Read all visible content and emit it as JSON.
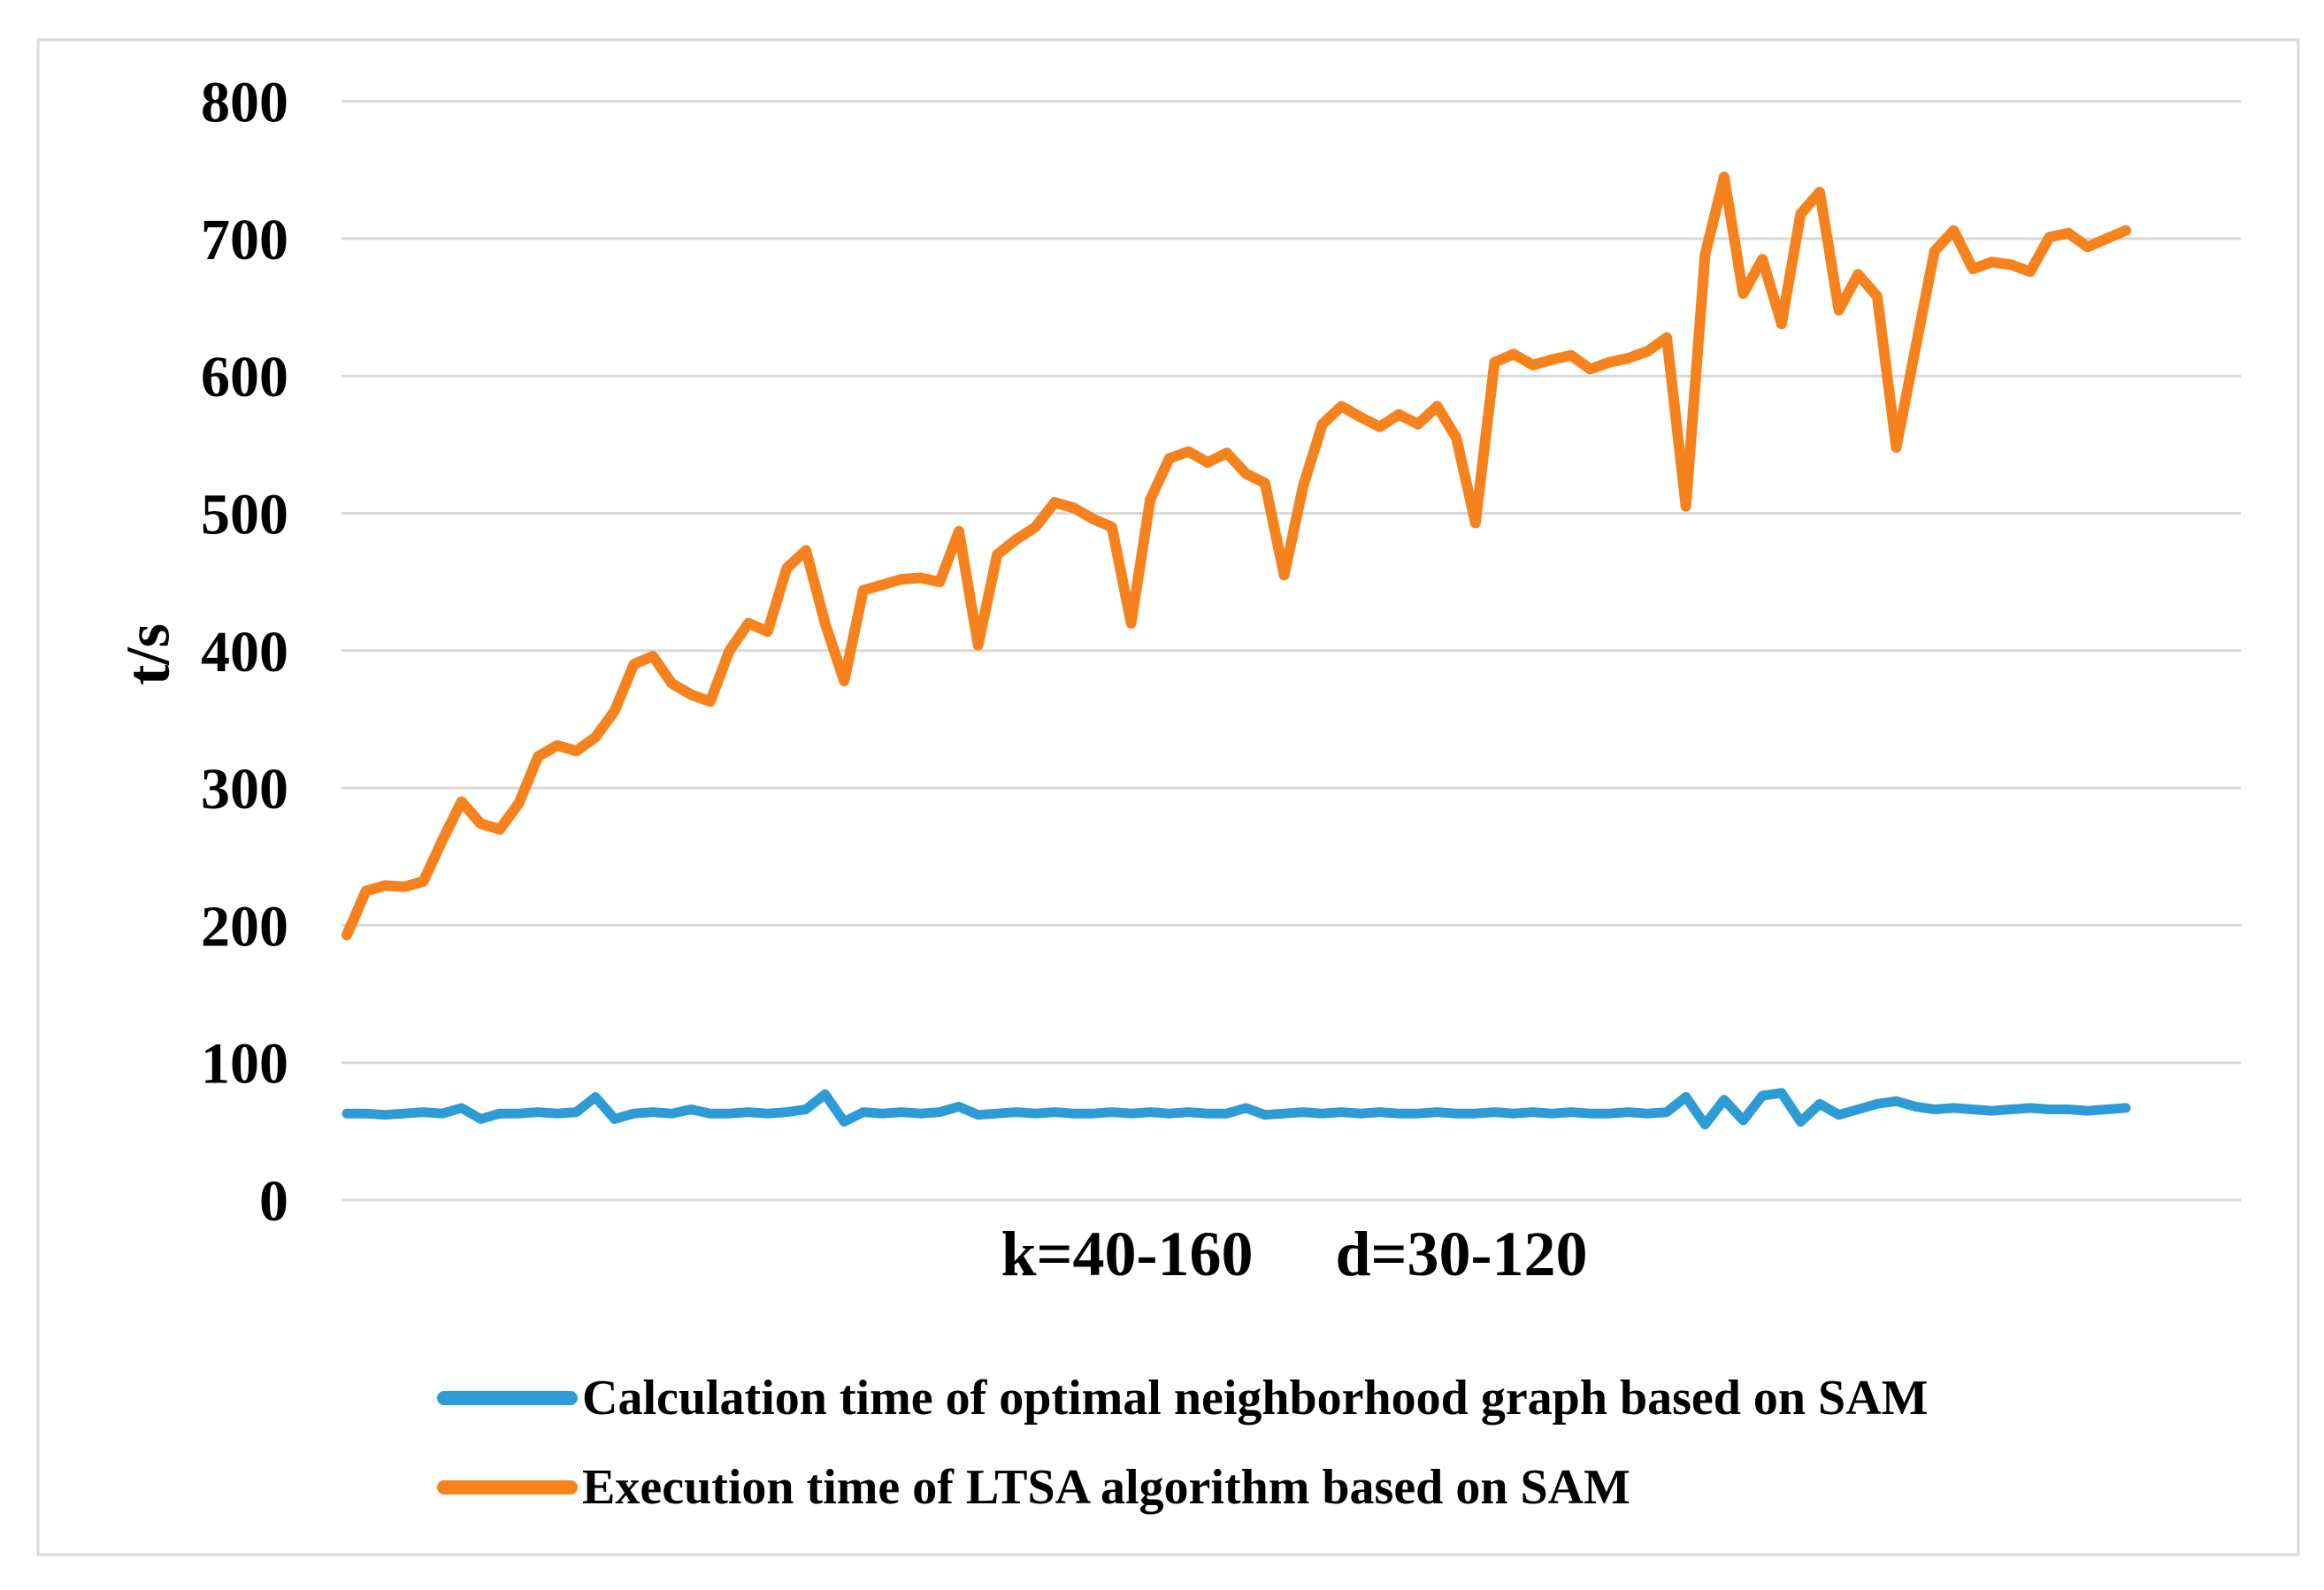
{
  "figure": {
    "background": "#FFFFFF",
    "border_color": "#D9D9D9"
  },
  "chart_data": {
    "type": "line",
    "title": "",
    "ylabel": "t/s",
    "xlabel": "k=40-160    d=30-120",
    "xlabel_parts": [
      "k=40-160",
      "d=30-120"
    ],
    "ylim": [
      0,
      800
    ],
    "ytick_labels": [
      "0",
      "100",
      "200",
      "300",
      "400",
      "500",
      "600",
      "700",
      "800"
    ],
    "grid": "horizontal",
    "legend_position": "bottom-left",
    "colors": {
      "gridline": "#D9D9D9",
      "text": "#000000",
      "blue_series": "#2D9BD5",
      "orange_series": "#F6821E"
    },
    "series": [
      {
        "name": "Calculation time of optimal neighborhood graph based on SAM",
        "color": "#2D9BD5",
        "stroke_width": 11,
        "values": [
          63,
          63,
          62,
          63,
          64,
          63,
          67,
          59,
          63,
          63,
          64,
          63,
          64,
          75,
          59,
          63,
          64,
          63,
          66,
          63,
          63,
          64,
          63,
          64,
          66,
          77,
          57,
          64,
          63,
          64,
          63,
          64,
          68,
          62,
          63,
          64,
          63,
          64,
          63,
          63,
          64,
          63,
          64,
          63,
          64,
          63,
          63,
          67,
          62,
          63,
          64,
          63,
          64,
          63,
          64,
          63,
          63,
          64,
          63,
          63,
          64,
          63,
          64,
          63,
          64,
          63,
          63,
          64,
          63,
          64,
          75,
          55,
          73,
          58,
          76,
          78,
          57,
          70,
          62,
          66,
          70,
          72,
          68,
          66,
          67,
          66,
          65,
          66,
          67,
          66,
          66,
          65,
          66,
          67
        ]
      },
      {
        "name": "Execution time of LTSA algorithm based on SAM",
        "color": "#F6821E",
        "stroke_width": 12,
        "values": [
          193,
          225,
          229,
          228,
          232,
          262,
          290,
          274,
          270,
          289,
          323,
          331,
          327,
          337,
          356,
          390,
          396,
          376,
          368,
          363,
          400,
          420,
          414,
          460,
          473,
          420,
          378,
          444,
          448,
          452,
          453,
          450,
          487,
          404,
          470,
          481,
          490,
          508,
          504,
          496,
          490,
          420,
          510,
          540,
          545,
          537,
          544,
          529,
          522,
          455,
          520,
          565,
          578,
          570,
          563,
          572,
          565,
          578,
          555,
          493,
          610,
          616,
          608,
          612,
          615,
          605,
          610,
          613,
          618,
          628,
          505,
          688,
          745,
          660,
          685,
          638,
          718,
          734,
          648,
          674,
          658,
          548,
          620,
          691,
          706,
          678,
          683,
          681,
          676,
          701,
          704,
          694,
          700,
          706
        ]
      }
    ]
  }
}
